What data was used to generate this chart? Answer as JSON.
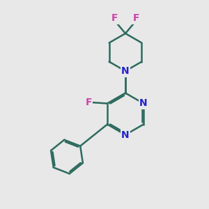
{
  "background_color": "#e8e8e8",
  "bond_color": "#2d6b5e",
  "nitrogen_color": "#2222cc",
  "fluorine_color": "#cc44aa",
  "bond_width": 1.8,
  "figsize": [
    3.0,
    3.0
  ],
  "dpi": 100,
  "xlim": [
    0,
    10
  ],
  "ylim": [
    0,
    10
  ]
}
